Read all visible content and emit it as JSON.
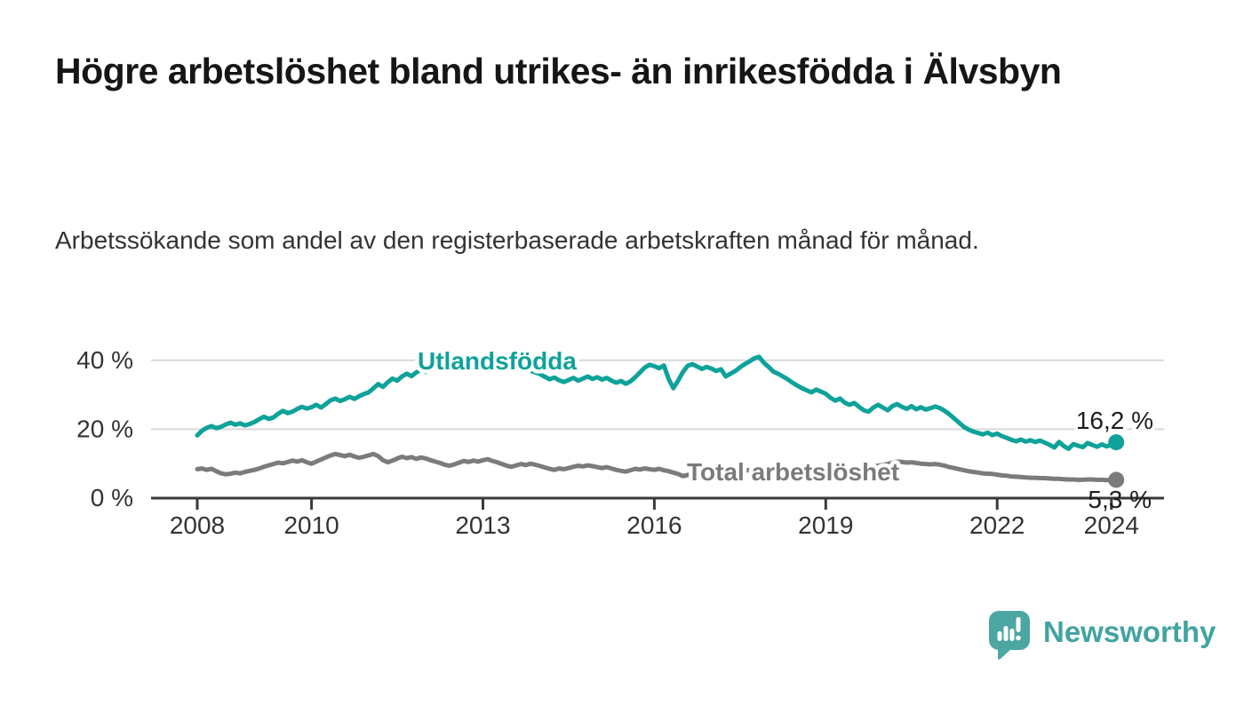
{
  "header": {
    "title": "Högre arbetslöshet bland utrikes- än inrikesfödda i Älvsbyn",
    "subtitle": "Arbetssökande som andel av den registerbaserade arbetskraften månad för månad."
  },
  "chart_data": {
    "type": "line",
    "frequency": "monthly",
    "x_start_year": 2008,
    "xlim": [
      2007.1,
      2025.0
    ],
    "ylim": [
      0,
      45
    ],
    "grid": "horizontal",
    "yticks": [
      {
        "value": 0,
        "label": "0 %"
      },
      {
        "value": 20,
        "label": "20 %"
      },
      {
        "value": 40,
        "label": "40 %"
      }
    ],
    "xticks": [
      {
        "value": 2008,
        "label": "2008"
      },
      {
        "value": 2010,
        "label": "2010"
      },
      {
        "value": 2013,
        "label": "2013"
      },
      {
        "value": 2016,
        "label": "2016"
      },
      {
        "value": 2019,
        "label": "2019"
      },
      {
        "value": 2022,
        "label": "2022"
      },
      {
        "value": 2024,
        "label": "2024"
      }
    ],
    "series": [
      {
        "name": "Utlandsfödda",
        "label_on_chart": "Utlandsfödda",
        "color": "#0EA29A",
        "end_value": 16.2,
        "end_value_label": "16,2 %",
        "values": [
          18.2,
          19.6,
          20.4,
          20.9,
          20.3,
          20.7,
          21.4,
          21.9,
          21.3,
          21.7,
          21.1,
          21.5,
          22.1,
          22.9,
          23.6,
          23.0,
          23.4,
          24.5,
          25.3,
          24.7,
          25.1,
          25.9,
          26.5,
          26.0,
          26.4,
          27.1,
          26.3,
          27.3,
          28.4,
          28.9,
          28.2,
          28.7,
          29.4,
          28.8,
          29.6,
          30.2,
          30.7,
          31.9,
          33.1,
          32.3,
          33.6,
          34.7,
          34.1,
          35.3,
          36.1,
          35.4,
          36.5,
          37.3,
          36.6,
          37.9,
          38.7,
          38.0,
          39.1,
          39.9,
          38.9,
          37.7,
          38.5,
          39.3,
          38.6,
          39.7,
          39.1,
          38.4,
          39.0,
          38.3,
          38.8,
          38.1,
          37.6,
          38.0,
          37.3,
          37.7,
          37.0,
          36.5,
          36.0,
          35.2,
          34.5,
          35.0,
          34.2,
          33.7,
          34.3,
          34.9,
          34.1,
          34.7,
          35.3,
          34.6,
          35.1,
          34.4,
          34.9,
          34.1,
          33.5,
          34.0,
          33.2,
          33.9,
          35.1,
          36.5,
          37.9,
          38.7,
          38.3,
          37.7,
          38.5,
          34.6,
          31.9,
          34.1,
          36.6,
          38.4,
          38.9,
          38.2,
          37.5,
          38.1,
          37.6,
          36.9,
          37.4,
          35.3,
          36.1,
          36.9,
          38.0,
          38.9,
          39.7,
          40.6,
          41.0,
          39.3,
          38.1,
          36.7,
          36.1,
          35.3,
          34.5,
          33.5,
          32.7,
          31.9,
          31.3,
          30.7,
          31.5,
          30.9,
          30.3,
          29.1,
          28.3,
          28.9,
          27.7,
          27.1,
          27.6,
          26.5,
          25.5,
          25.1,
          26.3,
          27.1,
          26.3,
          25.5,
          26.7,
          27.3,
          26.5,
          25.9,
          26.7,
          25.8,
          26.4,
          25.7,
          26.1,
          26.6,
          26.1,
          25.3,
          24.3,
          23.1,
          21.9,
          20.7,
          19.9,
          19.3,
          18.9,
          18.5,
          19.0,
          18.3,
          18.7,
          18.0,
          17.5,
          16.9,
          16.5,
          17.0,
          16.4,
          16.8,
          16.3,
          16.7,
          16.1,
          15.5,
          14.7,
          16.3,
          15.1,
          14.3,
          15.7,
          15.2,
          14.8,
          16.0,
          15.4,
          14.9,
          15.6,
          15.0,
          15.5,
          16.2
        ]
      },
      {
        "name": "Total arbetslöshet",
        "label_on_chart": "Total arbetslöshet",
        "color": "#7B7B7B",
        "end_value": 5.3,
        "end_value_label": "5,3 %",
        "values": [
          8.4,
          8.6,
          8.2,
          8.5,
          7.8,
          7.2,
          6.9,
          7.1,
          7.4,
          7.2,
          7.6,
          7.9,
          8.2,
          8.6,
          9.1,
          9.5,
          9.9,
          10.3,
          10.1,
          10.5,
          10.9,
          10.6,
          11.0,
          10.4,
          10.0,
          10.6,
          11.2,
          11.8,
          12.4,
          12.8,
          12.5,
          12.2,
          12.6,
          12.1,
          11.7,
          12.0,
          12.4,
          12.8,
          12.2,
          11.0,
          10.4,
          10.9,
          11.5,
          12.0,
          11.6,
          11.9,
          11.4,
          11.8,
          11.5,
          11.0,
          10.6,
          10.2,
          9.7,
          9.4,
          9.8,
          10.3,
          10.8,
          10.5,
          10.9,
          10.6,
          11.0,
          11.3,
          10.8,
          10.4,
          9.9,
          9.4,
          9.1,
          9.5,
          9.9,
          9.6,
          10.0,
          9.7,
          9.3,
          8.9,
          8.5,
          8.2,
          8.6,
          8.4,
          8.7,
          9.1,
          9.4,
          9.2,
          9.5,
          9.3,
          9.0,
          8.7,
          9.0,
          8.6,
          8.2,
          7.9,
          7.7,
          8.1,
          8.5,
          8.3,
          8.6,
          8.4,
          8.2,
          8.5,
          8.1,
          7.8,
          7.4,
          7.0,
          6.4,
          6.7,
          7.2,
          7.6,
          7.9,
          7.7,
          7.9,
          8.2,
          8.0,
          7.7,
          7.4,
          7.2,
          7.5,
          7.9,
          8.2,
          8.0,
          8.3,
          8.1,
          8.3,
          8.5,
          8.2,
          7.9,
          7.7,
          7.5,
          7.8,
          8.1,
          8.4,
          8.2,
          8.5,
          8.3,
          8.5,
          8.7,
          8.4,
          8.2,
          8.0,
          8.3,
          8.6,
          8.9,
          8.7,
          9.0,
          9.2,
          9.4,
          9.6,
          9.9,
          10.3,
          10.6,
          10.5,
          10.3,
          10.4,
          10.2,
          10.0,
          9.9,
          9.8,
          9.9,
          9.7,
          9.4,
          9.0,
          8.7,
          8.4,
          8.1,
          7.8,
          7.6,
          7.4,
          7.2,
          7.1,
          7.0,
          6.8,
          6.6,
          6.5,
          6.3,
          6.2,
          6.1,
          6.0,
          5.9,
          5.9,
          5.8,
          5.8,
          5.7,
          5.6,
          5.6,
          5.5,
          5.4,
          5.4,
          5.3,
          5.3,
          5.4,
          5.4,
          5.3,
          5.3,
          5.2,
          5.2,
          5.3
        ]
      }
    ]
  },
  "footer": {
    "brand": "Newsworthy",
    "brand_color": "#43A3A0",
    "icon_color": "#4CA6A2",
    "logo_icon": "bar-chart-speech-bubble-icon"
  }
}
